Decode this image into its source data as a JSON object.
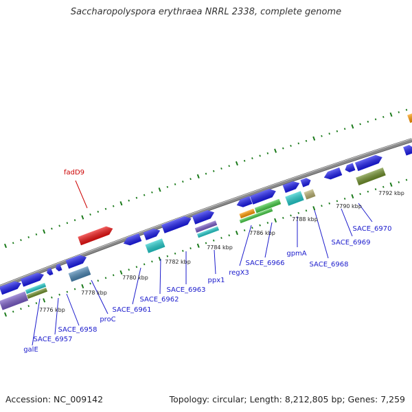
{
  "title": "Saccharopolyspora erythraea NRRL 2338, complete genome",
  "footer": {
    "accession": "Accession: NC_009142",
    "summary": "Topology: circular; Length: 8,212,805 bp; Genes: 7,259"
  },
  "colors": {
    "backbone": "#8a8a8a",
    "ticks": "#1a7a1a",
    "gene_label": "#1a1acc",
    "highlight_label": "#cc0000",
    "blue_gene": "#1a1aee",
    "red_gene": "#ee1111",
    "cyan_gene": "#22cccc",
    "green_gene": "#44cc44",
    "olive_gene": "#6f8f2a",
    "purple_gene": "#7a5cc8",
    "steel_gene": "#4a86b4",
    "khaki_gene": "#b8b070",
    "orange_gene": "#ff9900"
  },
  "scale_labels": [
    "7776 kbp",
    "7778 kbp",
    "7780 kbp",
    "7782 kbp",
    "7784 kbp",
    "7786 kbp",
    "7788 kbp",
    "7790 kbp",
    "7792 kbp"
  ],
  "gene_labels": [
    "fadD9",
    "galE",
    "SACE_6957",
    "SACE_6958",
    "proC",
    "SACE_6961",
    "SACE_6962",
    "SACE_6963",
    "ppx1",
    "regX3",
    "SACE_6966",
    "gpmA",
    "SACE_6968",
    "SACE_6969",
    "SACE_6970"
  ]
}
